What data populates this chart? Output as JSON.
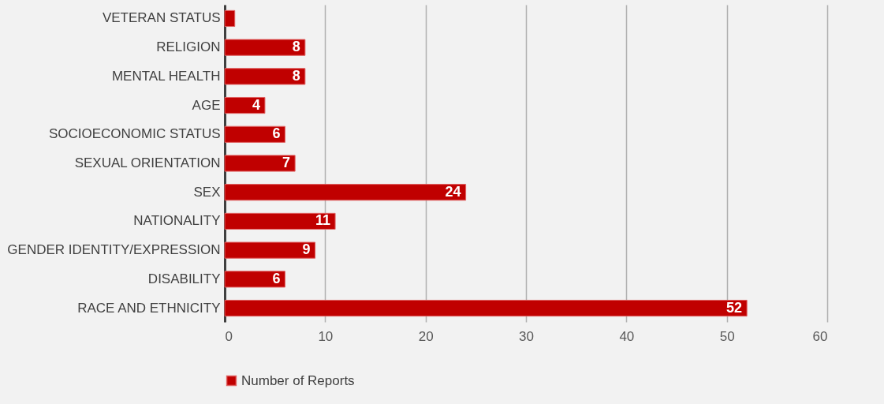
{
  "chart_data": {
    "type": "bar",
    "orientation": "horizontal",
    "categories": [
      "VETERAN STATUS",
      "RELIGION",
      "MENTAL HEALTH",
      "AGE",
      "SOCIOECONOMIC STATUS",
      "SEXUAL ORIENTATION",
      "SEX",
      "NATIONALITY",
      "GENDER IDENTITY/EXPRESSION",
      "DISABILITY",
      "RACE AND ETHNICITY"
    ],
    "series": [
      {
        "name": "Number of Reports",
        "color": "#c00000",
        "values": [
          1,
          8,
          8,
          4,
          6,
          7,
          24,
          11,
          9,
          6,
          52
        ],
        "value_labels": [
          null,
          "8",
          "8",
          "4",
          "6",
          "7",
          "24",
          "11",
          "9",
          "6",
          "52"
        ]
      }
    ],
    "xlim": [
      0,
      60
    ],
    "xticks": [
      0,
      10,
      20,
      30,
      40,
      50,
      60
    ],
    "grid": "x",
    "legend": "bottom"
  }
}
